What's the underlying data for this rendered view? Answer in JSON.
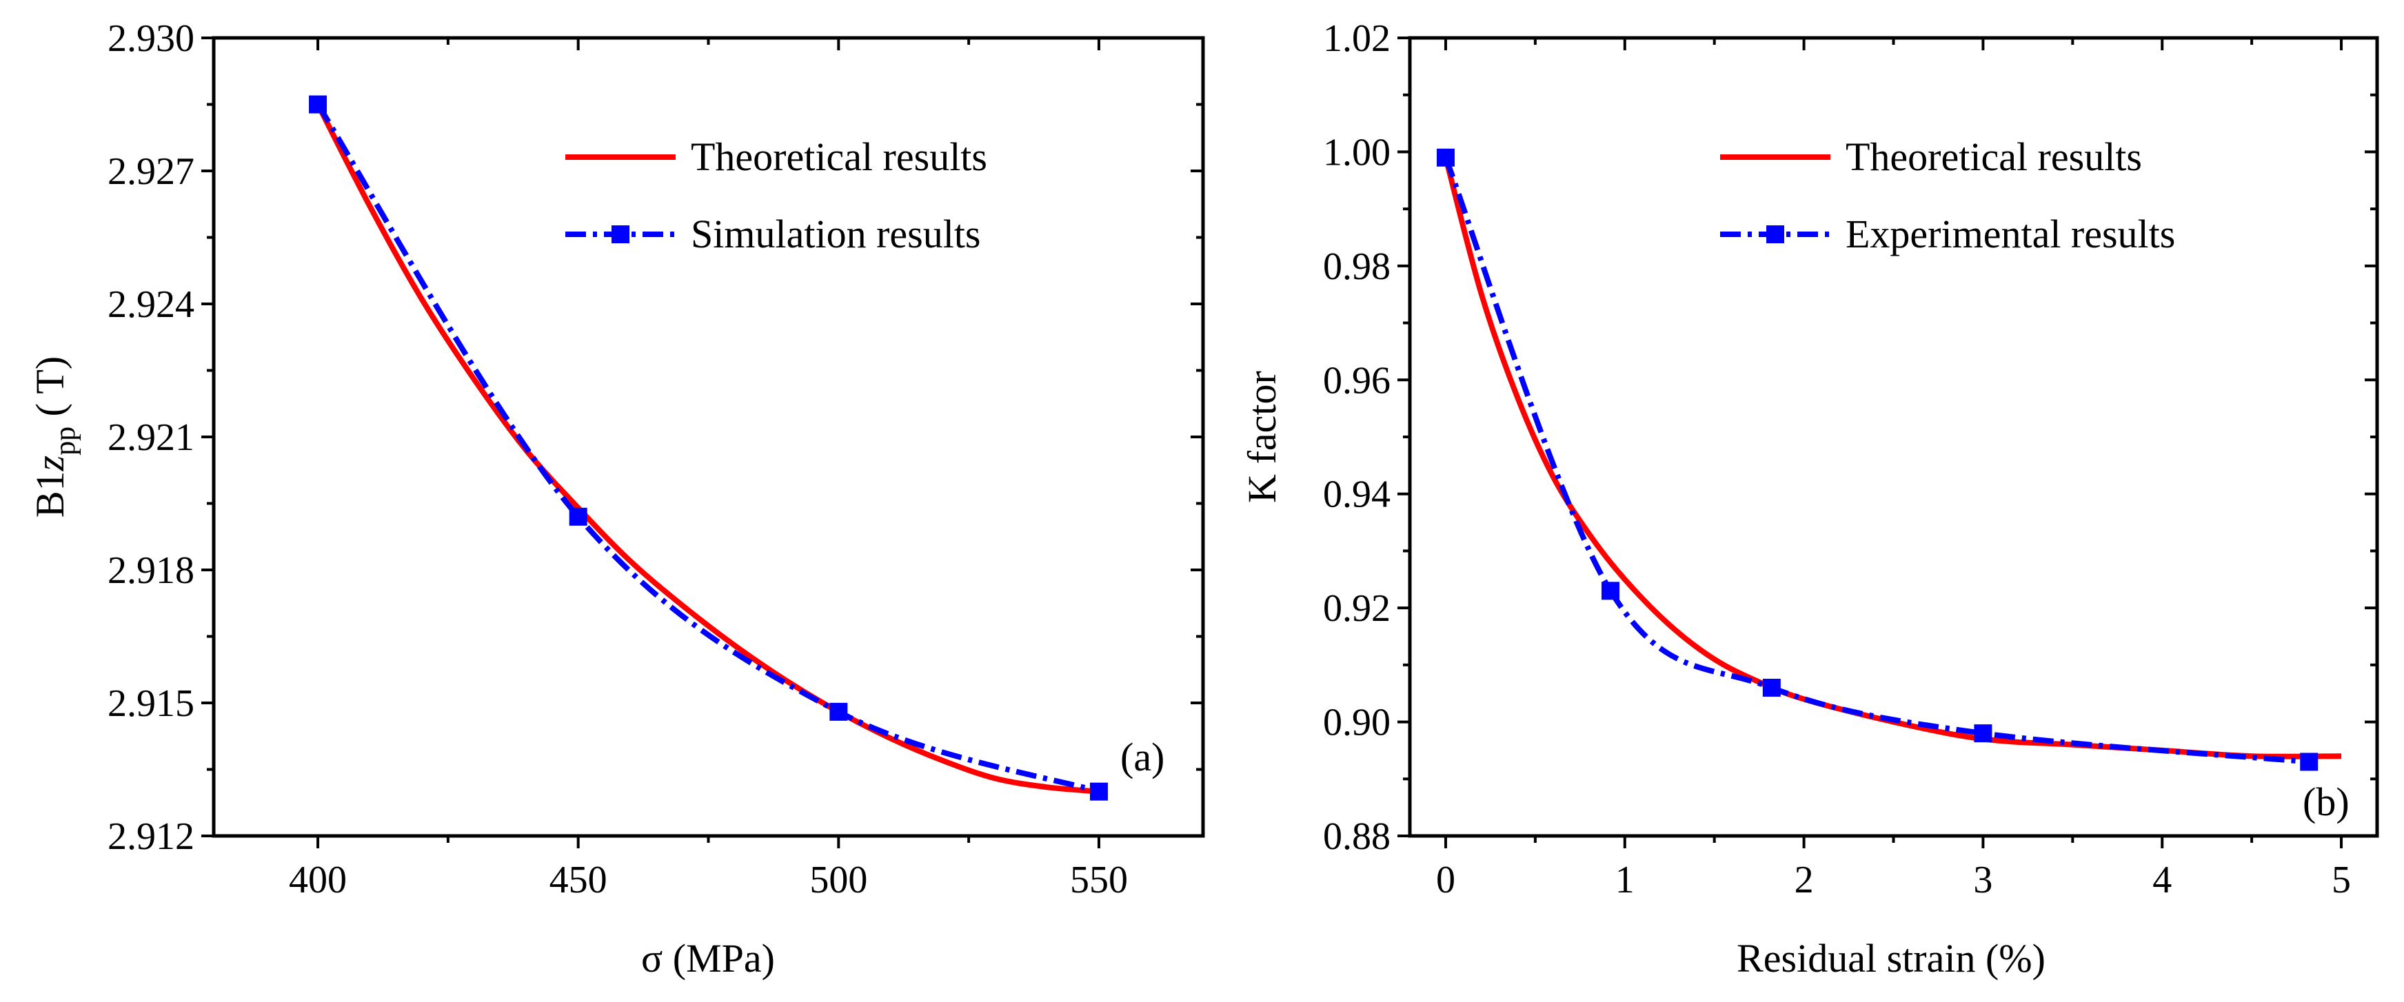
{
  "chart_data": [
    {
      "type": "line",
      "panel_label": "(a)",
      "xlabel": "σ (MPa)",
      "ylabel": {
        "base": "B1",
        "italic": "z",
        "sub": "pp",
        "unit": " ( T)"
      },
      "xlim": [
        380,
        570
      ],
      "ylim": [
        2.912,
        2.93
      ],
      "x_ticks": [
        400,
        450,
        500,
        550
      ],
      "y_ticks": [
        2.912,
        2.915,
        2.918,
        2.921,
        2.924,
        2.927,
        2.93
      ],
      "y_tick_labels": [
        "2.912",
        "2.915",
        "2.918",
        "2.921",
        "2.924",
        "2.927",
        "2.930"
      ],
      "legend_position": "top-right",
      "series": [
        {
          "name": "Theoretical results",
          "style": "solid",
          "color": "#ff0000",
          "x": [
            400,
            410,
            420,
            430,
            440,
            450,
            460,
            470,
            480,
            490,
            500,
            510,
            520,
            530,
            540,
            550
          ],
          "y": [
            2.9285,
            2.9262,
            2.9241,
            2.9223,
            2.9207,
            2.9194,
            2.9182,
            2.9172,
            2.9163,
            2.9155,
            2.9148,
            2.9142,
            2.9137,
            2.9133,
            2.9131,
            2.913
          ]
        },
        {
          "name": "Simulation results",
          "style": "dashdot",
          "marker": "square",
          "color": "#0000ff",
          "x": [
            400,
            450,
            500,
            550
          ],
          "y": [
            2.9285,
            2.9192,
            2.9148,
            2.913
          ]
        }
      ]
    },
    {
      "type": "line",
      "panel_label": "(b)",
      "xlabel": "Residual strain (%)",
      "ylabel": "K factor",
      "xlim": [
        -0.2,
        5.2
      ],
      "ylim": [
        0.88,
        1.02
      ],
      "x_ticks": [
        0,
        1,
        2,
        3,
        4,
        5
      ],
      "y_ticks": [
        0.88,
        0.9,
        0.92,
        0.94,
        0.96,
        0.98,
        1.0,
        1.02
      ],
      "y_tick_labels": [
        "0.88",
        "0.90",
        "0.92",
        "0.94",
        "0.96",
        "0.98",
        "1.00",
        "1.02"
      ],
      "legend_position": "top-right",
      "series": [
        {
          "name": "Theoretical results",
          "style": "solid",
          "color": "#ff0000",
          "x": [
            0,
            0.2,
            0.4,
            0.6,
            0.8,
            1.0,
            1.25,
            1.5,
            1.75,
            2.0,
            2.5,
            3.0,
            3.5,
            4.0,
            4.5,
            5.0
          ],
          "y": [
            0.999,
            0.975,
            0.957,
            0.943,
            0.933,
            0.925,
            0.917,
            0.911,
            0.907,
            0.904,
            0.9,
            0.897,
            0.896,
            0.895,
            0.894,
            0.894
          ]
        },
        {
          "name": "Experimental results",
          "style": "dashdot",
          "marker": "square",
          "color": "#0000ff",
          "x": [
            0,
            0.92,
            1.82,
            3.0,
            4.82
          ],
          "y": [
            0.999,
            0.923,
            0.906,
            0.898,
            0.893
          ]
        }
      ]
    }
  ]
}
